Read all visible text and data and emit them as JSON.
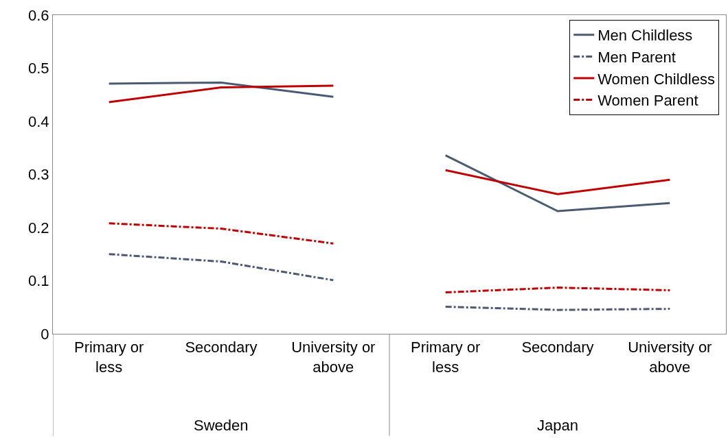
{
  "chart_data": {
    "type": "line",
    "categories": [
      "Primary or less",
      "Secondary",
      "University or above",
      "Primary or less",
      "Secondary",
      "University or above"
    ],
    "annotations": [
      "Sweden",
      "Japan"
    ],
    "series": [
      {
        "name": "Men Childless",
        "color": "#4a5a73",
        "line_style": "solid",
        "values": [
          0.471,
          0.473,
          0.446,
          0.336,
          0.231,
          0.246
        ]
      },
      {
        "name": "Men Parent",
        "color": "#4a5a73",
        "line_style": "dashdot",
        "values": [
          0.15,
          0.136,
          0.101,
          0.051,
          0.045,
          0.047
        ]
      },
      {
        "name": "Women Childless",
        "color": "#c00000",
        "line_style": "solid",
        "values": [
          0.436,
          0.464,
          0.467,
          0.308,
          0.263,
          0.29
        ]
      },
      {
        "name": "Women Parent",
        "color": "#c00000",
        "line_style": "dashdot",
        "values": [
          0.208,
          0.198,
          0.17,
          0.078,
          0.087,
          0.082
        ]
      }
    ],
    "ylim": [
      0,
      0.6
    ],
    "yticks": [
      0,
      0.1,
      0.2,
      0.3,
      0.4,
      0.5,
      0.6
    ],
    "grid": false,
    "legend": "top right",
    "marker": "none"
  }
}
